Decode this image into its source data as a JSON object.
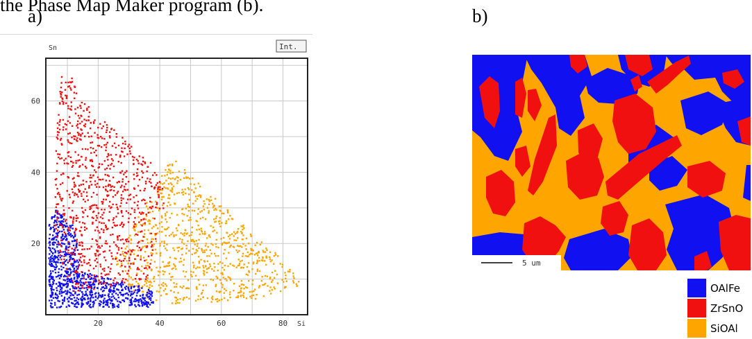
{
  "caption_fragment": "the Phase Map Maker program (b).",
  "panel_a_label": "a)",
  "panel_b_label": "b)",
  "phase_colors": {
    "OAlFe": "#1010f0",
    "ZrSnO": "#f01010",
    "SiOAl": "#ffa500"
  },
  "chart_data": {
    "type": "scatter",
    "xlabel": "Si",
    "ylabel": "Sn",
    "button_label": "Int.",
    "xlim": [
      3,
      88
    ],
    "ylim": [
      0,
      72
    ],
    "xticks": [
      20,
      40,
      60,
      80
    ],
    "yticks": [
      20,
      40,
      60
    ],
    "grid": true,
    "series": [
      {
        "name": "OAlFe",
        "color": "#1010f0",
        "region": [
          [
            4,
            2
          ],
          [
            38,
            2
          ],
          [
            38,
            7
          ],
          [
            15,
            12
          ],
          [
            12,
            25
          ],
          [
            6,
            30
          ],
          [
            4,
            25
          ]
        ]
      },
      {
        "name": "ZrSnO",
        "color": "#f01010",
        "region": [
          [
            8,
            68
          ],
          [
            11,
            70
          ],
          [
            13,
            62
          ],
          [
            25,
            52
          ],
          [
            38,
            42
          ],
          [
            42,
            33
          ],
          [
            36,
            10
          ],
          [
            12,
            6
          ],
          [
            6,
            20
          ],
          [
            6,
            45
          ]
        ]
      },
      {
        "name": "SiOAl",
        "color": "#ffa500",
        "region": [
          [
            25,
            15
          ],
          [
            38,
            35
          ],
          [
            44,
            44
          ],
          [
            52,
            38
          ],
          [
            66,
            26
          ],
          [
            78,
            17
          ],
          [
            87,
            8
          ],
          [
            70,
            4
          ],
          [
            40,
            3
          ],
          [
            32,
            5
          ]
        ]
      }
    ]
  },
  "phase_map": {
    "scale_bar_label": "5 um",
    "legend": [
      {
        "label": "OAlFe",
        "color": "#1010f0"
      },
      {
        "label": "ZrSnO",
        "color": "#f01010"
      },
      {
        "label": "SiOAl",
        "color": "#ffa500"
      }
    ]
  }
}
